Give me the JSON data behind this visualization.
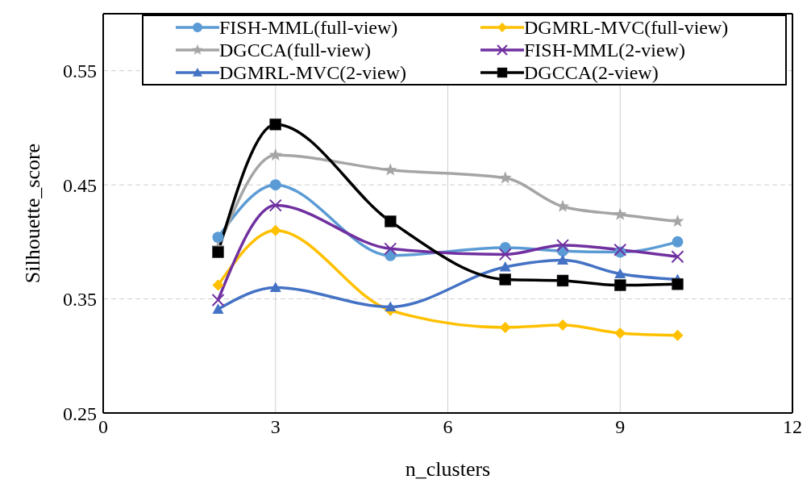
{
  "chart_data": {
    "type": "line",
    "xlabel": "n_clusters",
    "ylabel": "Silhouette_score",
    "x": [
      2,
      3,
      5,
      7,
      8,
      9,
      10
    ],
    "xlim": [
      0,
      12
    ],
    "xticks": [
      0,
      3,
      6,
      9,
      12
    ],
    "ylim": [
      0.25,
      0.6
    ],
    "yticks": [
      0.25,
      0.35,
      0.45,
      0.55
    ],
    "grid": true,
    "legend": "top",
    "line_style": "solid",
    "series": [
      {
        "name": "FISH-MML(full-view)",
        "color": "#5b9bd5",
        "marker": "circle",
        "values": [
          0.404,
          0.45,
          0.388,
          0.395,
          0.392,
          0.391,
          0.4
        ]
      },
      {
        "name": "DGMRL-MVC(full-view)",
        "color": "#ffc000",
        "marker": "diamond",
        "values": [
          0.362,
          0.41,
          0.34,
          0.325,
          0.327,
          0.32,
          0.318
        ]
      },
      {
        "name": "DGCCA(full-view)",
        "color": "#a5a5a5",
        "marker": "star",
        "values": [
          0.395,
          0.476,
          0.463,
          0.456,
          0.431,
          0.424,
          0.418
        ]
      },
      {
        "name": "FISH-MML(2-view)",
        "color": "#7030a0",
        "marker": "cross",
        "values": [
          0.349,
          0.432,
          0.394,
          0.389,
          0.397,
          0.393,
          0.387
        ]
      },
      {
        "name": "DGMRL-MVC(2-view)",
        "color": "#4472c4",
        "marker": "triangle",
        "values": [
          0.341,
          0.36,
          0.343,
          0.378,
          0.384,
          0.372,
          0.367
        ]
      },
      {
        "name": "DGCCA(2-view)",
        "color": "#000000",
        "marker": "square",
        "values": [
          0.391,
          0.503,
          0.418,
          0.367,
          0.366,
          0.362,
          0.363
        ]
      }
    ]
  }
}
